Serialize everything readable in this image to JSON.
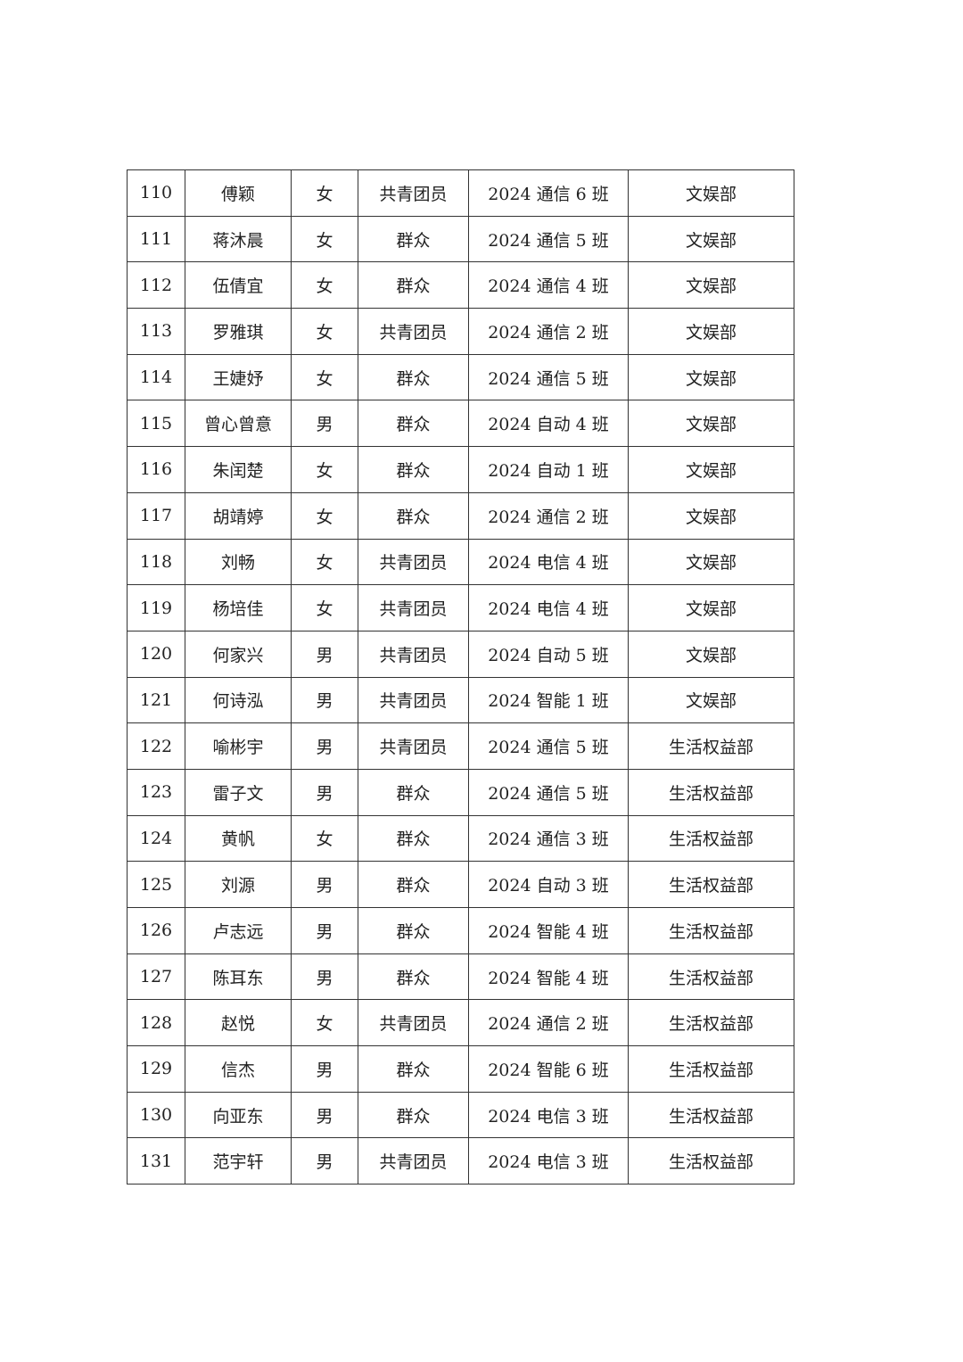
{
  "table": {
    "rows": [
      [
        "110",
        "傅颖",
        "女",
        "共青团员",
        "2024 通信 6 班",
        "文娱部"
      ],
      [
        "111",
        "蒋沐晨",
        "女",
        "群众",
        "2024 通信 5 班",
        "文娱部"
      ],
      [
        "112",
        "伍倩宜",
        "女",
        "群众",
        "2024 通信 4 班",
        "文娱部"
      ],
      [
        "113",
        "罗雅琪",
        "女",
        "共青团员",
        "2024 通信 2 班",
        "文娱部"
      ],
      [
        "114",
        "王婕妤",
        "女",
        "群众",
        "2024 通信 5 班",
        "文娱部"
      ],
      [
        "115",
        "曾心曾意",
        "男",
        "群众",
        "2024 自动 4 班",
        "文娱部"
      ],
      [
        "116",
        "朱闰楚",
        "女",
        "群众",
        "2024 自动 1 班",
        "文娱部"
      ],
      [
        "117",
        "胡靖婷",
        "女",
        "群众",
        "2024 通信 2 班",
        "文娱部"
      ],
      [
        "118",
        "刘畅",
        "女",
        "共青团员",
        "2024 电信 4 班",
        "文娱部"
      ],
      [
        "119",
        "杨培佳",
        "女",
        "共青团员",
        "2024 电信 4 班",
        "文娱部"
      ],
      [
        "120",
        "何家兴",
        "男",
        "共青团员",
        "2024 自动 5 班",
        "文娱部"
      ],
      [
        "121",
        "何诗泓",
        "男",
        "共青团员",
        "2024 智能 1 班",
        "文娱部"
      ],
      [
        "122",
        "喻彬宇",
        "男",
        "共青团员",
        "2024 通信 5 班",
        "生活权益部"
      ],
      [
        "123",
        "雷子文",
        "男",
        "群众",
        "2024 通信 5 班",
        "生活权益部"
      ],
      [
        "124",
        "黄帆",
        "女",
        "群众",
        "2024 通信 3 班",
        "生活权益部"
      ],
      [
        "125",
        "刘源",
        "男",
        "群众",
        "2024 自动 3 班",
        "生活权益部"
      ],
      [
        "126",
        "卢志远",
        "男",
        "群众",
        "2024 智能 4 班",
        "生活权益部"
      ],
      [
        "127",
        "陈耳东",
        "男",
        "群众",
        "2024 智能 4 班",
        "生活权益部"
      ],
      [
        "128",
        "赵悦",
        "女",
        "共青团员",
        "2024 通信 2 班",
        "生活权益部"
      ],
      [
        "129",
        "信杰",
        "男",
        "群众",
        "2024 智能 6 班",
        "生活权益部"
      ],
      [
        "130",
        "向亚东",
        "男",
        "群众",
        "2024 电信 3 班",
        "生活权益部"
      ],
      [
        "131",
        "范宇轩",
        "男",
        "共青团员",
        "2024 电信 3 班",
        "生活权益部"
      ]
    ]
  }
}
